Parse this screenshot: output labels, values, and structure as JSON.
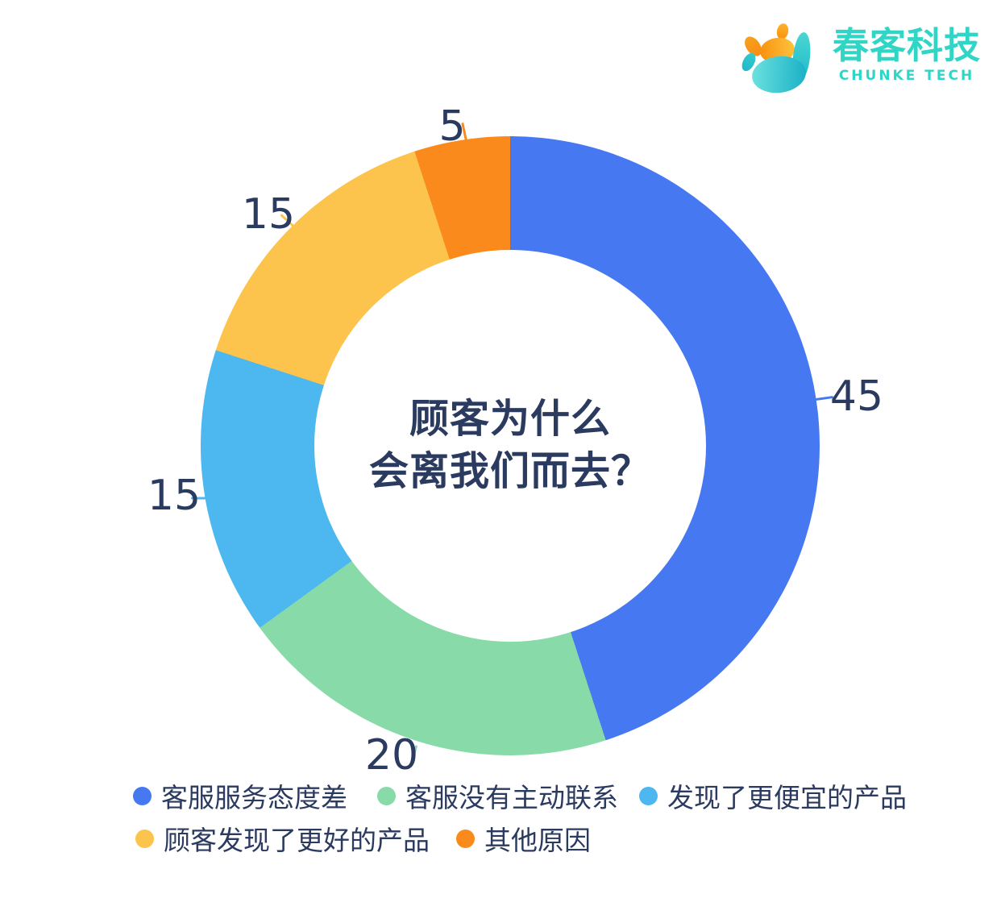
{
  "brand": {
    "name_zh": "春客科技",
    "name_en": "CHUNKE TECH",
    "color": "#2FD5C5"
  },
  "chart_data": {
    "type": "donut",
    "title": "顾客为什么会离我们而去？",
    "title_lines": [
      "顾客为什么",
      "会离我们而去？"
    ],
    "start_angle_deg": 0,
    "direction": "clockwise",
    "inner_radius_ratio": 0.63,
    "legend_position": "bottom",
    "value_label_color": "#2B3A5F",
    "series": [
      {
        "label": "客服服务态度差",
        "value": 45,
        "color": "#4678F2"
      },
      {
        "label": "客服没有主动联系",
        "value": 20,
        "color": "#88DBA8"
      },
      {
        "label": "发现了更便宜的产品",
        "value": 15,
        "color": "#4DB7F0"
      },
      {
        "label": "顾客发现了更好的产品",
        "value": 15,
        "color": "#FDC44D"
      },
      {
        "label": "其他原因",
        "value": 5,
        "color": "#FB8A1C"
      }
    ]
  }
}
